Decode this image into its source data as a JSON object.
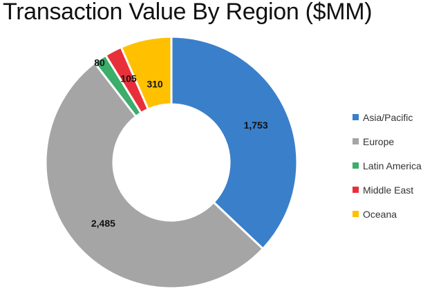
{
  "chart_data": {
    "type": "pie",
    "title": "Transaction Value By Region ($MM)",
    "categories": [
      "Asia/Pacific",
      "Europe",
      "Latin America",
      "Middle East",
      "Oceana"
    ],
    "values": [
      1753,
      2485,
      80,
      105,
      310
    ],
    "value_labels": [
      "1,753",
      "2,485",
      "80",
      "105",
      "310"
    ],
    "colors": [
      "#3a7fca",
      "#a5a5a5",
      "#3aae6a",
      "#e8303a",
      "#ffc000"
    ],
    "donut": true,
    "legend_placement": "right"
  }
}
